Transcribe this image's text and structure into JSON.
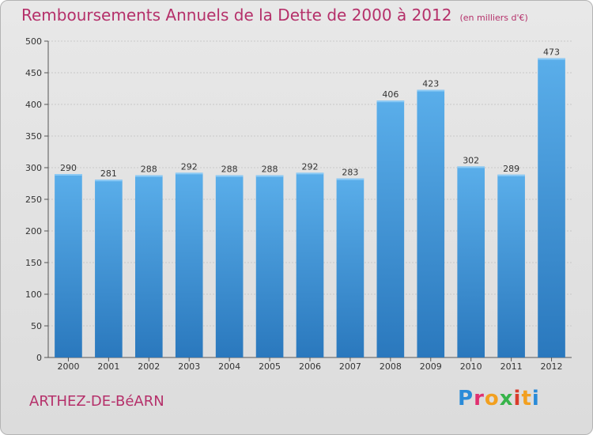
{
  "header": {
    "title": "Remboursements Annuels de la Dette de 2000 à 2012",
    "subtitle": "(en milliers d'€)"
  },
  "commune": "ARTHEZ-DE-BéARN",
  "logo": {
    "letters": [
      "P",
      "r",
      "o",
      "x",
      "i",
      "t",
      "i"
    ]
  },
  "colors": {
    "title": "#b5306a",
    "bar_top": "#5aaeea",
    "bar_bottom": "#2a78bd"
  },
  "chart_data": {
    "type": "bar",
    "categories": [
      "2000",
      "2001",
      "2002",
      "2003",
      "2004",
      "2005",
      "2006",
      "2007",
      "2008",
      "2009",
      "2010",
      "2011",
      "2012"
    ],
    "values": [
      290,
      281,
      288,
      292,
      288,
      288,
      292,
      283,
      406,
      423,
      302,
      289,
      473
    ],
    "ylim": [
      0,
      500
    ],
    "yticks": [
      0,
      50,
      100,
      150,
      200,
      250,
      300,
      350,
      400,
      450,
      500
    ],
    "grid": true,
    "data_labels": true
  }
}
